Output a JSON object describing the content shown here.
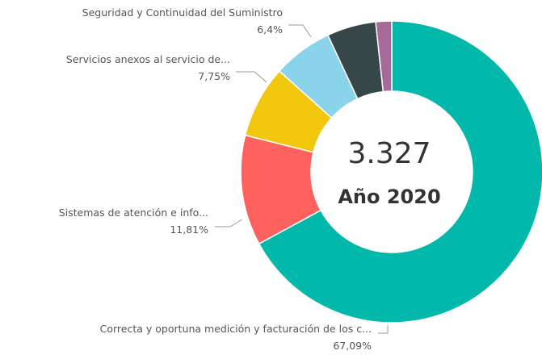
{
  "chart_data": {
    "type": "donut",
    "categories": [
      "Correcta y oportuna medición y facturación de los c...",
      "Sistemas de atención e info...",
      "Servicios anexos al servicio de...",
      "Seguridad y Continuidad del Suministro",
      null,
      null
    ],
    "values": [
      67.09,
      11.81,
      7.75,
      6.4,
      5.25,
      1.7
    ],
    "value_labels": [
      "67,09%",
      "11,81%",
      "7,75%",
      "6,4%",
      null,
      null
    ],
    "colors": [
      "#01b8aa",
      "#fd625e",
      "#f2c80f",
      "#8ad4eb",
      "#374649",
      "#a66999"
    ],
    "center_value": "3.327",
    "center_label": "Año 2020"
  }
}
